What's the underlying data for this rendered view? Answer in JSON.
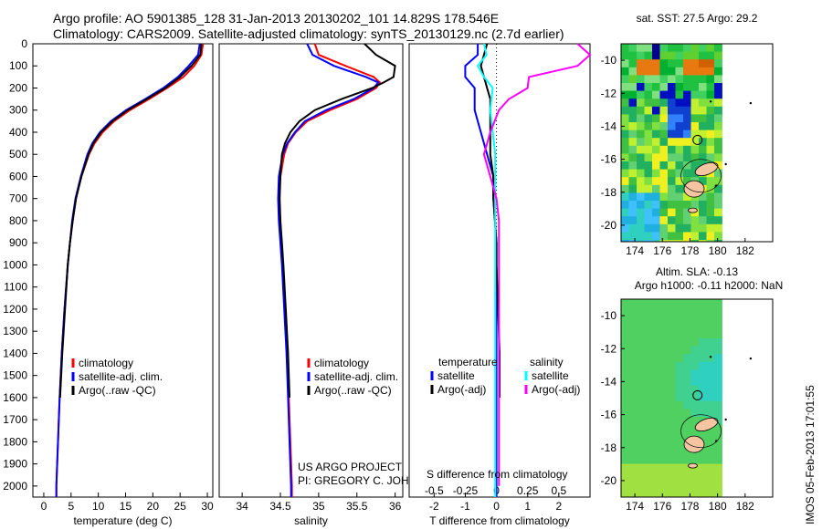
{
  "header": {
    "line1": "Argo profile: AO 5901385_128 31-Jan-2013 20130202_101 14.829S 178.546E",
    "line2": "Climatology: CARS2009. Satellite-adjusted climatology: synTS_20130129.nc (2.7d earlier)"
  },
  "colors": {
    "climatology": "#ff0000",
    "satellite_clim": "#0000ff",
    "argo": "#000000",
    "sal_satellite": "#00ffff",
    "sal_argo": "#ff00ff"
  },
  "chart_data": [
    {
      "type": "line",
      "id": "temperature",
      "xlabel": "temperature (deg C)",
      "ylabel": "",
      "xlim": [
        -2,
        31
      ],
      "ylim": [
        2050,
        0
      ],
      "xticks": [
        "0",
        "5",
        "10",
        "15",
        "20",
        "25",
        "30"
      ],
      "yticks": [
        "0",
        "100",
        "200",
        "300",
        "400",
        "500",
        "600",
        "700",
        "800",
        "900",
        "1000",
        "1100",
        "1200",
        "1300",
        "1400",
        "1500",
        "1600",
        "1700",
        "1800",
        "1900",
        "2000"
      ],
      "depth": [
        0,
        50,
        100,
        150,
        200,
        250,
        300,
        350,
        400,
        450,
        500,
        600,
        700,
        800,
        900,
        1000,
        1200,
        1400,
        1600,
        1800,
        2000,
        2050
      ],
      "series": [
        {
          "name": "climatology",
          "values": [
            29.2,
            28.9,
            27.6,
            25.6,
            22.6,
            19.3,
            15.8,
            12.9,
            10.8,
            9.3,
            8.3,
            6.9,
            5.9,
            5.3,
            4.8,
            4.4,
            3.8,
            3.3,
            2.9,
            2.6,
            2.3,
            2.3
          ]
        },
        {
          "name": "satellite-adj. clim.",
          "values": [
            28.6,
            28.3,
            26.6,
            24.6,
            21.9,
            18.6,
            15.1,
            12.3,
            10.3,
            8.9,
            8.0,
            6.8,
            5.8,
            5.2,
            4.8,
            4.4,
            3.8,
            3.3,
            2.9,
            2.6,
            2.3,
            2.3
          ]
        },
        {
          "name": "Argo(..raw -QC)",
          "values": [
            28.9,
            28.7,
            27.1,
            25.0,
            22.3,
            18.9,
            15.4,
            12.6,
            10.5,
            9.1,
            8.2,
            6.9,
            5.9,
            5.3,
            4.8,
            4.4,
            3.9,
            3.4,
            3.0
          ]
        }
      ],
      "legend": {
        "items": [
          "climatology",
          "satellite-adj. clim.",
          "Argo(..raw -QC)"
        ],
        "placement": "lower-middle"
      }
    },
    {
      "type": "line",
      "id": "salinity",
      "xlabel": "salinity",
      "xlim": [
        33.7,
        36.1
      ],
      "ylim": [
        2050,
        0
      ],
      "xticks": [
        "34",
        "34.5",
        "35",
        "35.5",
        "36"
      ],
      "depth": [
        0,
        50,
        100,
        150,
        175,
        200,
        250,
        300,
        350,
        400,
        450,
        500,
        600,
        700,
        800,
        900,
        1000,
        1200,
        1400,
        1600,
        1800,
        2000,
        2050
      ],
      "series": [
        {
          "name": "climatology",
          "values": [
            34.95,
            35.0,
            35.35,
            35.72,
            35.8,
            35.75,
            35.5,
            35.15,
            34.85,
            34.7,
            34.6,
            34.55,
            34.5,
            34.48,
            34.49,
            34.51,
            34.53,
            34.56,
            34.59,
            34.61,
            34.63,
            34.65,
            34.65
          ]
        },
        {
          "name": "satellite-adj. clim.",
          "values": [
            34.85,
            34.92,
            35.2,
            35.62,
            35.78,
            35.72,
            35.46,
            35.1,
            34.82,
            34.69,
            34.59,
            34.53,
            34.48,
            34.47,
            34.48,
            34.5,
            34.52,
            34.55,
            34.58,
            34.6,
            34.62,
            34.64,
            34.64
          ]
        },
        {
          "name": "Argo(..raw -QC)",
          "values": [
            35.6,
            35.75,
            36.0,
            35.98,
            35.85,
            35.7,
            35.3,
            34.95,
            34.75,
            34.63,
            34.56,
            34.52,
            34.5,
            34.49,
            34.5,
            34.52,
            34.54,
            34.57,
            34.6,
            34.62
          ]
        }
      ],
      "legend": {
        "items": [
          "climatology",
          "satellite-adj. clim.",
          "Argo(..raw -QC)"
        ],
        "placement": "lower-middle"
      },
      "annotation": [
        "US ARGO PROJECT",
        "PI: GREGORY C. JOHNSON"
      ]
    },
    {
      "type": "line",
      "id": "differences",
      "xlabel": "T difference from climatology",
      "xlabel_top": "S difference from climatology",
      "xlim_T": [
        -2.8,
        3.0
      ],
      "xlim_S": [
        -0.7,
        0.75
      ],
      "ylim": [
        2050,
        0
      ],
      "xticks": [
        "-2",
        "-1",
        "0",
        "1",
        "2"
      ],
      "xticks_top": [
        "-0.5",
        "-0.25",
        "0",
        "0.25",
        "0.5"
      ],
      "depth": [
        0,
        50,
        100,
        150,
        200,
        250,
        300,
        400,
        500,
        600,
        700,
        800,
        900,
        1000,
        1200,
        1400,
        1600,
        1800,
        2000,
        2050
      ],
      "series": [
        {
          "name": "temperature satellite",
          "values": [
            -0.6,
            -0.6,
            -1.0,
            -1.0,
            -0.7,
            -0.7,
            -0.7,
            -0.5,
            -0.3,
            -0.1,
            -0.1,
            -0.05,
            0,
            0,
            0,
            0,
            0,
            0,
            0,
            0
          ]
        },
        {
          "name": "temperature Argo(-adj)",
          "values": [
            -0.3,
            -0.4,
            -0.5,
            -0.4,
            -0.3,
            -0.2,
            -0.2,
            -0.2,
            -0.2,
            -0.1,
            -0.1,
            -0.05,
            0,
            0,
            0.05,
            0.1,
            0.1
          ]
        },
        {
          "name": "salinity satellite",
          "values": [
            -0.1,
            -0.08,
            -0.15,
            -0.1,
            -0.03,
            -0.04,
            -0.05,
            -0.03,
            -0.01,
            -0.01,
            -0.01,
            -0.01,
            -0.01,
            -0.01,
            -0.01,
            -0.01,
            -0.01,
            -0.01,
            -0.01,
            -0.01
          ]
        },
        {
          "name": "salinity Argo(-adj)",
          "values": [
            0.65,
            0.75,
            0.65,
            0.26,
            0.25,
            0.1,
            0.02,
            -0.05,
            -0.1,
            -0.05,
            0,
            0.02,
            0.02,
            0.02,
            0.02,
            0.02,
            0.02,
            0.02,
            0.02
          ]
        }
      ],
      "legend": {
        "col1_header": "temperature",
        "col2_header": "salinity",
        "col1": [
          "satellite",
          "Argo(-adj)"
        ],
        "col2": [
          "satellite",
          "Argo(-adj)"
        ],
        "placement": "lower"
      }
    },
    {
      "type": "heatmap",
      "id": "sst-map",
      "title": "sat. SST: 27.5 Argo: 29.2",
      "xlim": [
        173,
        184
      ],
      "ylim": [
        -21,
        -9
      ],
      "xticks": [
        "174",
        "176",
        "178",
        "180",
        "182"
      ],
      "yticks": [
        "-10",
        "-12",
        "-14",
        "-16",
        "-18",
        "-20"
      ],
      "marker": {
        "lon": 178.546,
        "lat": -14.829
      }
    },
    {
      "type": "heatmap",
      "id": "sla-map",
      "title_line1": "Altim. SLA: -0.13",
      "title_line2": "Argo h1000: -0.11 h2000: NaN",
      "xlim": [
        173,
        184
      ],
      "ylim": [
        -21,
        -9
      ],
      "xticks": [
        "174",
        "176",
        "178",
        "180",
        "182"
      ],
      "yticks": [
        "-10",
        "-12",
        "-14",
        "-16",
        "-18",
        "-20"
      ],
      "marker": {
        "lon": 178.546,
        "lat": -14.829
      }
    }
  ],
  "stamp": "IMOS 05-Feb-2013 17:01:55"
}
